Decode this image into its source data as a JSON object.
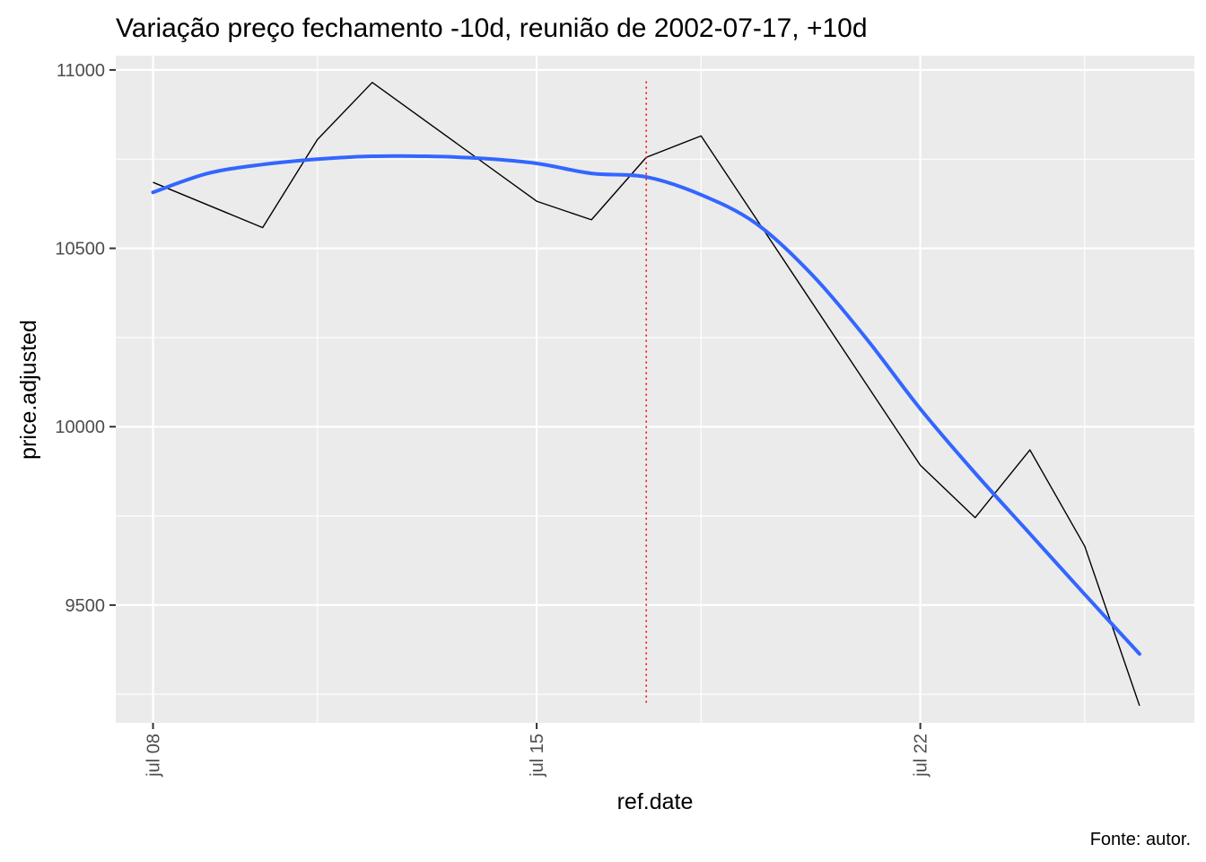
{
  "chart_data": {
    "type": "line",
    "title": "Variação preço fechamento -10d, reunião de 2002-07-17, +10d",
    "xlabel": "ref.date",
    "ylabel": "price.adjusted",
    "caption": "Fonte: autor.",
    "x_ticks": [
      {
        "date": "2002-07-08",
        "label": "jul 08"
      },
      {
        "date": "2002-07-15",
        "label": "jul 15"
      },
      {
        "date": "2002-07-22",
        "label": "jul 22"
      }
    ],
    "y_ticks": [
      9500,
      10000,
      10500,
      11000
    ],
    "xlim": [
      "2002-07-07",
      "2002-07-27"
    ],
    "ylim": [
      9170,
      11040
    ],
    "grid": true,
    "series": [
      {
        "kind": "line",
        "color": "#000000",
        "x": [
          "2002-07-08",
          "2002-07-10",
          "2002-07-11",
          "2002-07-12",
          "2002-07-15",
          "2002-07-16",
          "2002-07-17",
          "2002-07-18",
          "2002-07-22",
          "2002-07-23",
          "2002-07-24",
          "2002-07-25",
          "2002-07-26"
        ],
        "y": [
          10685,
          10558,
          10805,
          10965,
          10632,
          10580,
          10755,
          10815,
          9892,
          9745,
          9935,
          9665,
          9218
        ]
      },
      {
        "kind": "smooth",
        "color": "#3366FF",
        "x": [
          "2002-07-08",
          "2002-07-09",
          "2002-07-10",
          "2002-07-11",
          "2002-07-12",
          "2002-07-13",
          "2002-07-14",
          "2002-07-15",
          "2002-07-16",
          "2002-07-17",
          "2002-07-18",
          "2002-07-19",
          "2002-07-20",
          "2002-07-21",
          "2002-07-22",
          "2002-07-23",
          "2002-07-24",
          "2002-07-25",
          "2002-07-26"
        ],
        "y": [
          10657,
          10710,
          10735,
          10750,
          10758,
          10758,
          10752,
          10738,
          10710,
          10700,
          10650,
          10570,
          10430,
          10250,
          10050,
          9870,
          9700,
          9530,
          9363
        ]
      }
    ],
    "vline": {
      "x": "2002-07-17",
      "color": "#FF0000",
      "style": "dotted",
      "y_from": 9222,
      "y_to": 10968
    }
  }
}
